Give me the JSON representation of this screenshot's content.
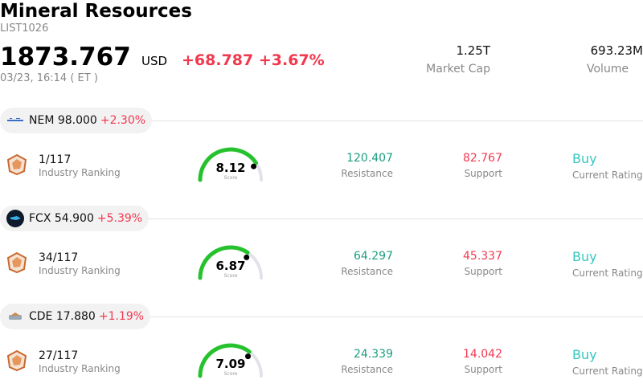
{
  "header": {
    "title": "Mineral Resources",
    "code": "LIST1026",
    "price": "1873.767",
    "currency": "USD",
    "change": "+68.787",
    "change_pct": "+3.67%",
    "timestamp": "03/23, 16:14  ( ET )",
    "market_cap_value": "1.25T",
    "market_cap_label": "Market Cap",
    "volume_value": "693.23M",
    "volume_label": "Volume"
  },
  "colors": {
    "up": "#f2384f",
    "resistance": "#1a9e80",
    "rating": "#33c7c0"
  },
  "stocks": [
    {
      "ticker_price": "NEM 98.000",
      "pct": "+2.30%",
      "logo": "newmont-logo",
      "rank": "1/117",
      "rank_label": "Industry Ranking",
      "score": "8.12",
      "score_label": "Score",
      "score_fraction": 0.812,
      "resistance": "120.407",
      "resistance_label": "Resistance",
      "support": "82.767",
      "support_label": "Support",
      "rating": "Buy",
      "rating_label": "Current Rating"
    },
    {
      "ticker_price": "FCX 54.900",
      "pct": "+5.39%",
      "logo": "freeport-logo",
      "rank": "34/117",
      "rank_label": "Industry Ranking",
      "score": "6.87",
      "score_label": "Score",
      "score_fraction": 0.687,
      "resistance": "64.297",
      "resistance_label": "Resistance",
      "support": "45.337",
      "support_label": "Support",
      "rating": "Buy",
      "rating_label": "Current Rating"
    },
    {
      "ticker_price": "CDE 17.880",
      "pct": "+1.19%",
      "logo": "coeur-logo",
      "rank": "27/117",
      "rank_label": "Industry Ranking",
      "score": "7.09",
      "score_label": "Score",
      "score_fraction": 0.709,
      "resistance": "24.339",
      "resistance_label": "Resistance",
      "support": "14.042",
      "support_label": "Support",
      "rating": "Buy",
      "rating_label": "Current Rating"
    }
  ]
}
